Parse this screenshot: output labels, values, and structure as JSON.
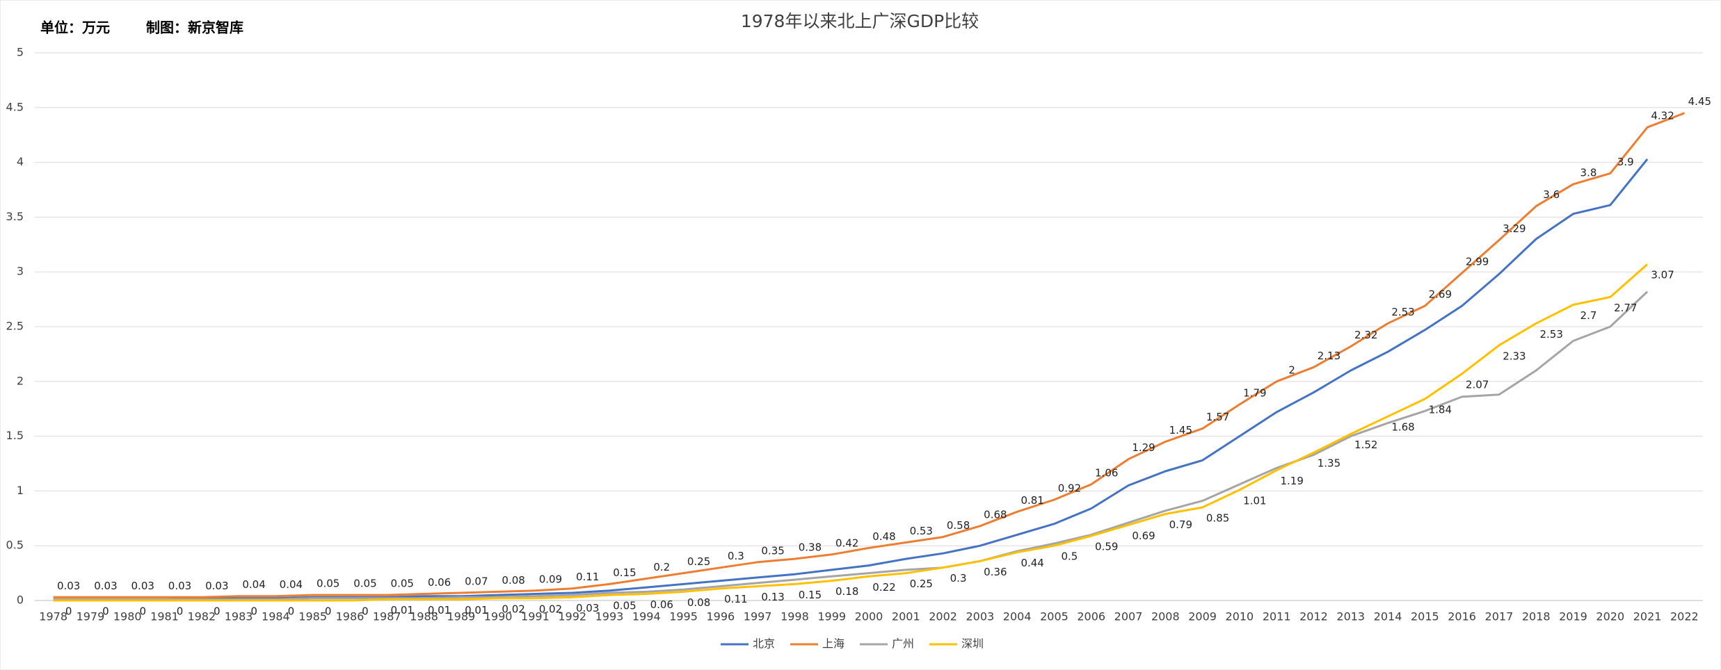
{
  "chart_data": {
    "type": "line",
    "title": "1978年以来北上广深GDP比较",
    "annotations": [
      "单位：万元",
      "制图：新京智库"
    ],
    "categories": [
      "1978",
      "1979",
      "1980",
      "1981",
      "1982",
      "1983",
      "1984",
      "1985",
      "1986",
      "1987",
      "1988",
      "1989",
      "1990",
      "1991",
      "1992",
      "1993",
      "1994",
      "1995",
      "1996",
      "1997",
      "1998",
      "1999",
      "2000",
      "2001",
      "2002",
      "2003",
      "2004",
      "2005",
      "2006",
      "2007",
      "2008",
      "2009",
      "2010",
      "2011",
      "2012",
      "2013",
      "2014",
      "2015",
      "2016",
      "2017",
      "2018",
      "2019",
      "2020",
      "2021",
      "2022"
    ],
    "ylim": [
      0,
      5
    ],
    "yticks": [
      0,
      0.5,
      1,
      1.5,
      2,
      2.5,
      3,
      3.5,
      4,
      4.5,
      5
    ],
    "grid": true,
    "legend": "bottom",
    "series": [
      {
        "name": "北京",
        "color": "#4472c4",
        "show_labels": false,
        "values": [
          0.01,
          0.01,
          0.01,
          0.01,
          0.02,
          0.02,
          0.02,
          0.03,
          0.03,
          0.03,
          0.04,
          0.04,
          0.05,
          0.06,
          0.07,
          0.09,
          0.12,
          0.15,
          0.18,
          0.21,
          0.24,
          0.28,
          0.32,
          0.38,
          0.43,
          0.5,
          0.6,
          0.7,
          0.84,
          1.05,
          1.18,
          1.28,
          1.5,
          1.72,
          1.9,
          2.1,
          2.27,
          2.47,
          2.69,
          2.98,
          3.3,
          3.53,
          3.61,
          4.03,
          null
        ]
      },
      {
        "name": "上海",
        "color": "#ed7d31",
        "show_labels": true,
        "label_pos": "above",
        "values": [
          0.03,
          0.03,
          0.03,
          0.03,
          0.03,
          0.04,
          0.04,
          0.05,
          0.05,
          0.05,
          0.06,
          0.07,
          0.08,
          0.09,
          0.11,
          0.15,
          0.2,
          0.25,
          0.3,
          0.35,
          0.38,
          0.42,
          0.48,
          0.53,
          0.58,
          0.68,
          0.81,
          0.92,
          1.06,
          1.29,
          1.45,
          1.57,
          1.79,
          2,
          2.13,
          2.32,
          2.53,
          2.69,
          2.99,
          3.29,
          3.6,
          3.8,
          3.9,
          4.32,
          4.45
        ]
      },
      {
        "name": "广州",
        "color": "#a5a5a5",
        "show_labels": false,
        "values": [
          0.01,
          0.01,
          0.01,
          0.01,
          0.01,
          0.01,
          0.01,
          0.02,
          0.02,
          0.02,
          0.02,
          0.03,
          0.03,
          0.04,
          0.05,
          0.07,
          0.08,
          0.1,
          0.13,
          0.16,
          0.19,
          0.22,
          0.25,
          0.28,
          0.3,
          0.36,
          0.45,
          0.52,
          0.6,
          0.71,
          0.82,
          0.91,
          1.06,
          1.21,
          1.33,
          1.5,
          1.62,
          1.73,
          1.86,
          1.88,
          2.1,
          2.37,
          2.5,
          2.82,
          null
        ]
      },
      {
        "name": "深圳",
        "color": "#ffc000",
        "show_labels": true,
        "label_pos": "below",
        "values": [
          0,
          0,
          0,
          0,
          0,
          0,
          0,
          0,
          0,
          0.01,
          0.01,
          0.01,
          0.02,
          0.02,
          0.03,
          0.05,
          0.06,
          0.08,
          0.11,
          0.13,
          0.15,
          0.18,
          0.22,
          0.25,
          0.3,
          0.36,
          0.44,
          0.5,
          0.59,
          0.69,
          0.79,
          0.85,
          1.01,
          1.19,
          1.35,
          1.52,
          1.68,
          1.84,
          2.07,
          2.33,
          2.53,
          2.7,
          2.77,
          3.07,
          null
        ]
      }
    ]
  }
}
